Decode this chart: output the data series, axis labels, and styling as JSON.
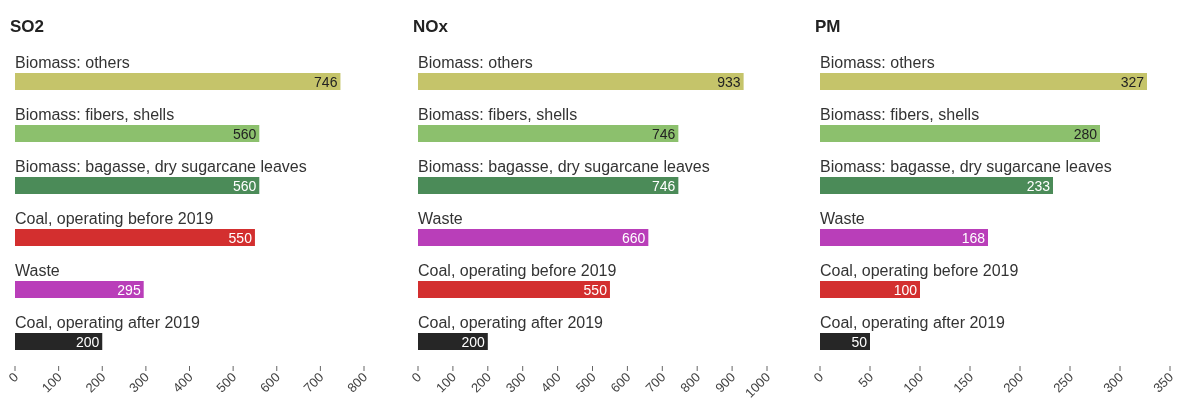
{
  "chart_data": [
    {
      "type": "bar",
      "orientation": "horizontal",
      "title": "SO2",
      "categories": [
        "Biomass: others",
        "Biomass: fibers, shells",
        "Biomass: bagasse, dry sugarcane leaves",
        "Coal, operating before 2019",
        "Waste",
        "Coal, operating after 2019"
      ],
      "values": [
        746,
        560,
        560,
        550,
        295,
        200
      ],
      "colors": [
        "#c5c46a",
        "#8cc06d",
        "#4b8b58",
        "#d32f2f",
        "#b93eb9",
        "#262626"
      ],
      "xlim": [
        0,
        800
      ],
      "xticks": [
        0,
        100,
        200,
        300,
        400,
        500,
        600,
        700,
        800
      ],
      "data_labels": true,
      "grid": false
    },
    {
      "type": "bar",
      "orientation": "horizontal",
      "title": "NOx",
      "categories": [
        "Biomass: others",
        "Biomass: fibers, shells",
        "Biomass: bagasse, dry sugarcane leaves",
        "Waste",
        "Coal, operating before 2019",
        "Coal, operating after 2019"
      ],
      "values": [
        933,
        746,
        746,
        660,
        550,
        200
      ],
      "colors": [
        "#c5c46a",
        "#8cc06d",
        "#4b8b58",
        "#b93eb9",
        "#d32f2f",
        "#262626"
      ],
      "xlim": [
        0,
        1000
      ],
      "xticks": [
        0,
        100,
        200,
        300,
        400,
        500,
        600,
        700,
        800,
        900,
        1000
      ],
      "data_labels": true,
      "grid": false
    },
    {
      "type": "bar",
      "orientation": "horizontal",
      "title": "PM",
      "categories": [
        "Biomass: others",
        "Biomass: fibers, shells",
        "Biomass: bagasse, dry sugarcane leaves",
        "Waste",
        "Coal, operating before 2019",
        "Coal, operating after 2019"
      ],
      "values": [
        327,
        280,
        233,
        168,
        100,
        50
      ],
      "colors": [
        "#c5c46a",
        "#8cc06d",
        "#4b8b58",
        "#b93eb9",
        "#d32f2f",
        "#262626"
      ],
      "xlim": [
        0,
        350
      ],
      "xticks": [
        0,
        50,
        100,
        150,
        200,
        250,
        300,
        350
      ],
      "data_labels": true,
      "grid": false
    }
  ]
}
